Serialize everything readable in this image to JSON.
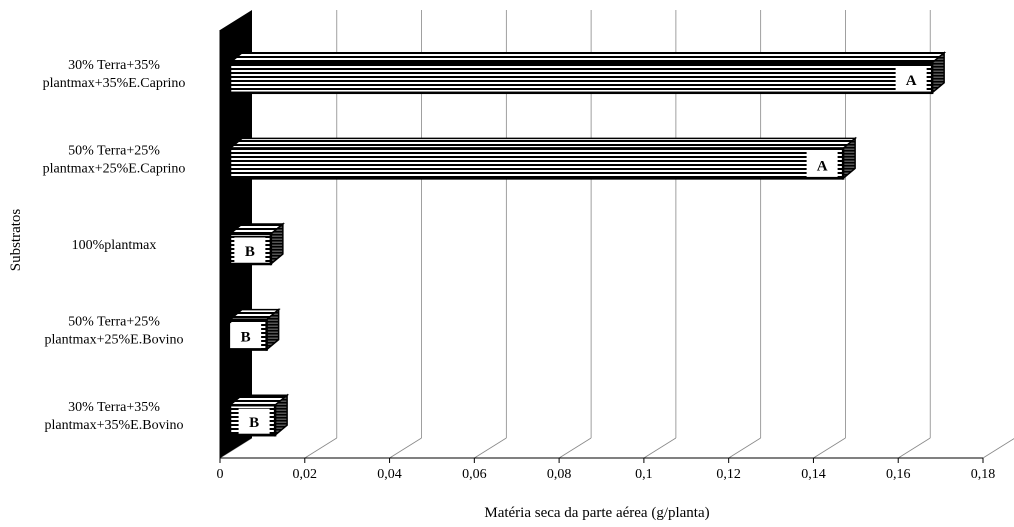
{
  "chart_data": {
    "type": "bar",
    "orientation": "horizontal",
    "three_d": true,
    "xlabel": "Matéria seca da parte aérea (g/planta)",
    "ylabel": "Substratos",
    "xlim": [
      0,
      0.18
    ],
    "x_ticks": [
      "0",
      "0,02",
      "0,04",
      "0,06",
      "0,08",
      "0,1",
      "0,12",
      "0,14",
      "0,16",
      "0,18"
    ],
    "grid": true,
    "legend": "none",
    "bar_fill": "horizontal-stripes",
    "categories": [
      [
        "30% Terra+35%",
        "plantmax+35%E.Caprino"
      ],
      [
        "50% Terra+25%",
        "plantmax+25%E.Caprino"
      ],
      [
        "100%plantmax"
      ],
      [
        "50% Terra+25%",
        "plantmax+25%E.Bovino"
      ],
      [
        "30% Terra+35%",
        "plantmax+35%E.Bovino"
      ]
    ],
    "values": [
      0.168,
      0.147,
      0.012,
      0.011,
      0.013
    ],
    "significance_letters": [
      "A",
      "A",
      "B",
      "B",
      "B"
    ]
  }
}
